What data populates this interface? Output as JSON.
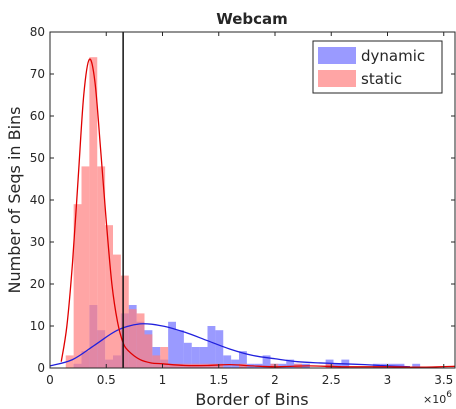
{
  "chart_data": {
    "type": "histogram",
    "title": "Webcam",
    "xlabel": "Border of Bins",
    "ylabel": "Number of Seqs in Bins",
    "x_multiplier_base": "×10",
    "x_multiplier_exp": "6",
    "xlim": [
      0,
      3.6
    ],
    "ylim": [
      0,
      80
    ],
    "x_ticks": [
      0,
      0.5,
      1,
      1.5,
      2,
      2.5,
      3,
      3.5
    ],
    "x_tick_labels": [
      "0",
      "0.5",
      "1",
      "1.5",
      "2",
      "2.5",
      "3",
      "3.5"
    ],
    "y_ticks": [
      0,
      10,
      20,
      30,
      40,
      50,
      60,
      70,
      80
    ],
    "y_tick_labels": [
      "0",
      "10",
      "20",
      "30",
      "40",
      "50",
      "60",
      "70",
      "80"
    ],
    "bin_width": 0.07,
    "threshold_x": 0.65,
    "legend_position": "top-right",
    "series": [
      {
        "name": "dynamic",
        "color": "#6f6fff",
        "curve_color": "#2020dd",
        "bin_starts": [
          0.21,
          0.28,
          0.35,
          0.42,
          0.49,
          0.56,
          0.63,
          0.7,
          0.77,
          0.84,
          0.91,
          0.98,
          1.05,
          1.12,
          1.19,
          1.26,
          1.33,
          1.4,
          1.47,
          1.54,
          1.61,
          1.68,
          1.75,
          1.82,
          1.89,
          1.96,
          2.03,
          2.1,
          2.17,
          2.24,
          2.31,
          2.38,
          2.45,
          2.52,
          2.59,
          2.66,
          2.73,
          2.8,
          2.87,
          2.94,
          3.01,
          3.08,
          3.15,
          3.22
        ],
        "counts": [
          1,
          4,
          15,
          9,
          2,
          3,
          13,
          15,
          11,
          9,
          5,
          2,
          11,
          9,
          6,
          5,
          5,
          10,
          9,
          3,
          2,
          4,
          1,
          1,
          3,
          1,
          1,
          2,
          1,
          1,
          0,
          0,
          2,
          1,
          2,
          0,
          0,
          0,
          1,
          1,
          1,
          1,
          0,
          1
        ],
        "curve_x": [
          0,
          0.2,
          0.4,
          0.6,
          0.8,
          1.0,
          1.2,
          1.4,
          1.6,
          1.8,
          2.0,
          2.2,
          2.4,
          2.6,
          2.8,
          3.0,
          3.2
        ],
        "curve_y": [
          0.5,
          2,
          5.5,
          9,
          10.5,
          10,
          8.5,
          6.5,
          4.5,
          3,
          2.2,
          1.5,
          1.2,
          1,
          0.8,
          0.5,
          0.3
        ]
      },
      {
        "name": "static",
        "color": "#ff7f7f",
        "curve_color": "#e00000",
        "bin_starts": [
          0.14,
          0.21,
          0.28,
          0.35,
          0.42,
          0.49,
          0.56,
          0.63,
          0.7,
          0.77,
          0.84,
          0.91,
          0.98,
          1.05,
          1.12,
          1.19,
          1.26,
          1.33,
          1.4,
          1.47,
          1.54,
          1.61,
          1.68,
          1.75,
          1.82,
          1.89,
          1.96,
          2.03,
          2.1,
          2.17,
          2.24,
          2.31,
          2.38,
          2.45,
          2.52,
          2.59,
          2.66,
          2.73,
          2.8,
          2.87,
          2.94,
          3.01,
          3.08,
          3.15,
          3.22,
          3.29,
          3.36,
          3.43,
          3.5
        ],
        "counts": [
          3,
          39,
          48,
          74,
          48,
          34,
          27,
          22,
          14,
          13,
          8,
          3,
          5,
          1,
          1,
          1,
          1,
          1,
          1,
          1,
          0,
          0,
          1,
          0,
          0,
          0,
          1,
          0,
          0,
          1,
          0,
          0,
          0,
          1,
          0,
          0,
          0,
          0,
          0,
          0,
          0,
          0,
          0,
          0,
          0,
          0,
          0,
          0,
          0
        ],
        "curve_x": [
          0.1,
          0.15,
          0.2,
          0.25,
          0.3,
          0.35,
          0.4,
          0.45,
          0.5,
          0.55,
          0.6,
          0.65,
          0.7,
          0.8,
          0.9,
          1.0,
          1.2,
          1.4,
          1.6,
          1.8,
          2.0,
          2.3,
          2.6,
          3.0,
          3.3,
          3.6
        ],
        "curve_y": [
          1.5,
          10,
          25,
          45,
          65,
          73.5,
          68,
          52,
          35,
          20,
          11,
          6,
          4,
          2,
          1.2,
          1,
          0.6,
          0.6,
          0.8,
          0.5,
          0.3,
          0.5,
          0.3,
          0.3,
          0.2,
          0.4
        ]
      }
    ]
  }
}
